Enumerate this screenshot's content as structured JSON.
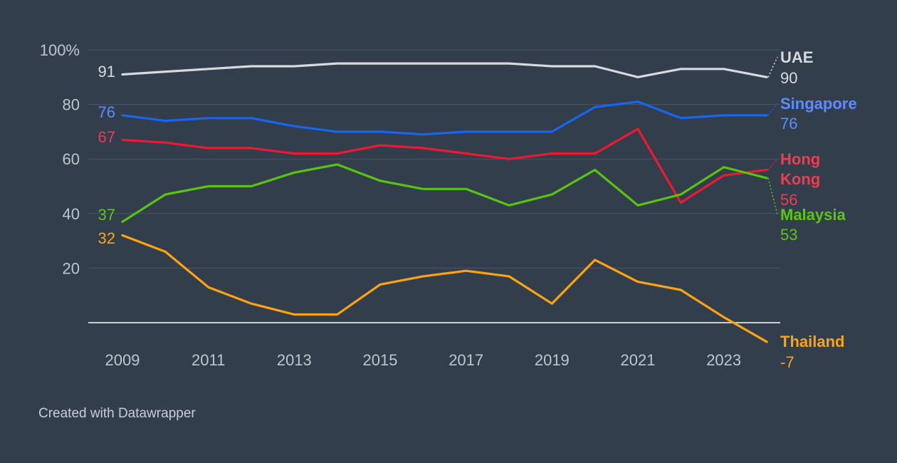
{
  "chart_data": {
    "type": "line",
    "title": "",
    "xlabel": "",
    "ylabel": "",
    "x": [
      2009,
      2010,
      2011,
      2012,
      2013,
      2014,
      2015,
      2016,
      2017,
      2018,
      2019,
      2020,
      2021,
      2022,
      2023,
      2024
    ],
    "x_ticks": [
      "2009",
      "2011",
      "2013",
      "2015",
      "2017",
      "2019",
      "2021",
      "2023"
    ],
    "y_ticks": [
      "20",
      "40",
      "60",
      "80",
      "100%"
    ],
    "ylim": [
      -7,
      100
    ],
    "zero_line": true,
    "grid": true,
    "legend": "direct labels at line ends",
    "series": [
      {
        "name": "UAE",
        "color": "#d7d9dc",
        "start_label": "91",
        "end_label": "90",
        "values": [
          91,
          92,
          93,
          94,
          94,
          95,
          95,
          95,
          95,
          95,
          94,
          94,
          90,
          93,
          93,
          90
        ]
      },
      {
        "name": "Singapore",
        "color": "#1765f0",
        "label_color": "#5b8cff",
        "start_label": "76",
        "end_label": "76",
        "values": [
          76,
          74,
          75,
          75,
          72,
          70,
          70,
          69,
          70,
          70,
          70,
          79,
          81,
          75,
          76,
          76
        ]
      },
      {
        "name": "Hong Kong",
        "color": "#ef1832",
        "label_color": "#f03a4f",
        "start_label": "67",
        "end_label": "56",
        "values": [
          67,
          66,
          64,
          64,
          62,
          62,
          65,
          64,
          62,
          60,
          62,
          62,
          71,
          44,
          54,
          56
        ]
      },
      {
        "name": "Malaysia",
        "color": "#58c40f",
        "label_color": "#5cc512",
        "start_label": "37",
        "end_label": "53",
        "values": [
          37,
          47,
          50,
          50,
          55,
          58,
          52,
          49,
          49,
          43,
          47,
          56,
          43,
          47,
          57,
          53
        ]
      },
      {
        "name": "Thailand",
        "color": "#fca311",
        "label_color": "#fca311",
        "start_label": "32",
        "end_label": "-7",
        "values": [
          32,
          26,
          13,
          7,
          3,
          3,
          14,
          17,
          19,
          17,
          7,
          23,
          15,
          12,
          2,
          -7
        ]
      }
    ]
  },
  "footer": "Created with Datawrapper"
}
